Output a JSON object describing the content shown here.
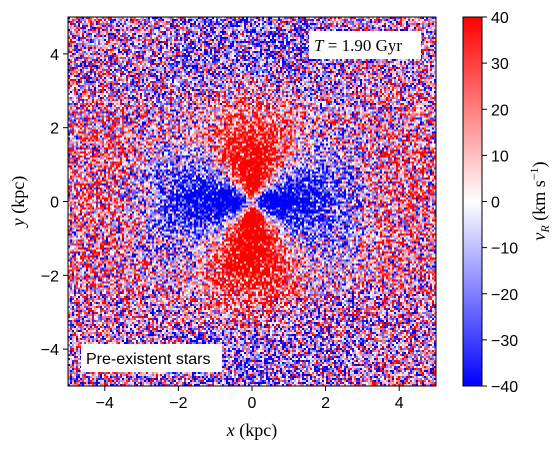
{
  "chart_data": {
    "type": "heatmap",
    "title": "",
    "xlabel": "x (kpc)",
    "ylabel": "y (kpc)",
    "xlim": [
      -5,
      5
    ],
    "ylim": [
      -5,
      5
    ],
    "x_ticks": [
      -4,
      -2,
      0,
      2,
      4
    ],
    "y_ticks": [
      -4,
      -2,
      0,
      2,
      4
    ],
    "x_tick_labels": [
      "−4",
      "−2",
      "0",
      "2",
      "4"
    ],
    "y_tick_labels": [
      "−4",
      "−2",
      "0",
      "2",
      "4"
    ],
    "colorbar": {
      "label": "v_R (km s^-1)",
      "label_parts": {
        "symbol": "v",
        "subscript": "R",
        "unit": "(km s",
        "exponent": "−1",
        "close": ")"
      },
      "min": -40,
      "max": 40,
      "ticks": [
        40,
        30,
        20,
        10,
        0,
        -10,
        -20,
        -30,
        -40
      ],
      "tick_labels": [
        "40",
        "30",
        "20",
        "10",
        "0",
        "−10",
        "−20",
        "−30",
        "−40"
      ],
      "colormap": "bwr",
      "colors": {
        "low": "#0000ff",
        "mid": "#ffffff",
        "high": "#ff0000"
      }
    },
    "pattern": {
      "description_free": true,
      "inner_quadrupole_sign": {
        "x_axis": "negative",
        "y_axis": "positive"
      },
      "outer_sign_reversal": true
    },
    "annotations": {
      "time_label": {
        "symbol": "T",
        "eq": " = ",
        "value": "1.90 Gyr"
      },
      "population_label": "Pre-existent stars"
    },
    "grid": false
  }
}
